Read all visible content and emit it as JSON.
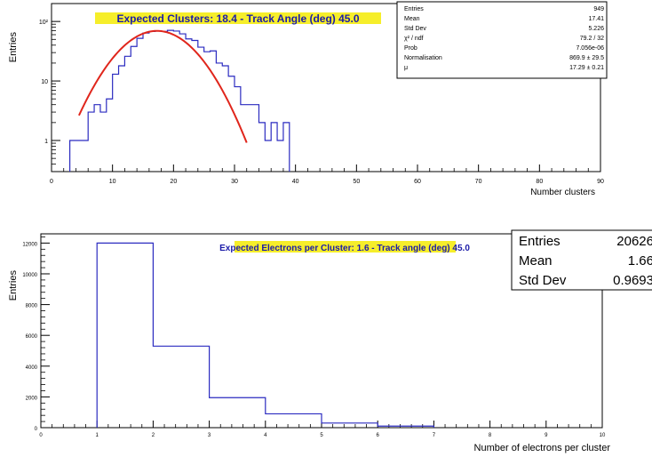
{
  "chart_data": [
    {
      "type": "bar",
      "title": "Expected Clusters: 18.4 - Track Angle (deg) 45.0",
      "xlabel": "Number clusters",
      "ylabel": "Entries",
      "xlim": [
        0,
        90
      ],
      "ylim": [
        0.3,
        200
      ],
      "log_y": true,
      "grid": false,
      "x_ticks": [
        0,
        10,
        20,
        30,
        40,
        50,
        60,
        70,
        80,
        90
      ],
      "x_tick_labels": [
        "0",
        "10",
        "20",
        "30",
        "40",
        "50",
        "60",
        "70",
        "80",
        "90"
      ],
      "y_ticks": [
        1,
        10,
        100
      ],
      "y_tick_labels": [
        "1",
        "10",
        "10²"
      ],
      "series": [
        {
          "kind": "histogram",
          "color": "#2b2bc0",
          "bin_edges": [
            3,
            4,
            5,
            6,
            7,
            8,
            9,
            10,
            11,
            12,
            13,
            14,
            15,
            16,
            17,
            18,
            19,
            20,
            21,
            22,
            23,
            24,
            25,
            26,
            27,
            28,
            29,
            30,
            31,
            32,
            33,
            34,
            35,
            36,
            37,
            38,
            39
          ],
          "values": [
            1,
            1,
            1,
            3,
            4,
            3,
            5,
            13,
            18,
            26,
            38,
            52,
            64,
            68,
            69,
            68,
            71,
            69,
            62,
            51,
            48,
            37,
            31,
            32,
            20,
            18,
            12,
            8,
            4,
            4,
            4,
            2,
            1,
            2,
            1,
            2
          ]
        },
        {
          "kind": "fit",
          "color": "#e0261c",
          "normalisation": 869.9,
          "mu": 17.29,
          "x_range": [
            4.5,
            32
          ]
        }
      ],
      "stats_box": {
        "rows": [
          {
            "label": "Entries",
            "value": "949"
          },
          {
            "label": "Mean",
            "value": "17.41"
          },
          {
            "label": "Std Dev",
            "value": "5.226"
          },
          {
            "label": "χ² / ndf",
            "value": "79.2 / 32"
          },
          {
            "label": "Prob",
            "value": "7.056e-06"
          },
          {
            "label": "Normalisation",
            "value": "869.9 ± 29.5"
          },
          {
            "label": "μ",
            "value": "17.29 ± 0.21"
          }
        ]
      }
    },
    {
      "type": "bar",
      "title": "Expected Electrons per Cluster: 1.6 - Track angle (deg) 45.0",
      "xlabel": "Number of electrons per cluster",
      "ylabel": "Entries",
      "xlim": [
        0,
        10
      ],
      "ylim": [
        0,
        12600
      ],
      "log_y": false,
      "grid": false,
      "x_ticks": [
        0,
        1,
        2,
        3,
        4,
        5,
        6,
        7,
        8,
        9,
        10
      ],
      "x_tick_labels": [
        "0",
        "1",
        "2",
        "3",
        "4",
        "5",
        "6",
        "7",
        "8",
        "9",
        "10"
      ],
      "y_ticks": [
        0,
        2000,
        4000,
        6000,
        8000,
        10000,
        12000
      ],
      "y_tick_labels": [
        "0",
        "2000",
        "4000",
        "6000",
        "8000",
        "10000",
        "12000"
      ],
      "series": [
        {
          "kind": "histogram",
          "color": "#2b2bc0",
          "bin_edges": [
            1,
            2,
            3,
            4,
            5,
            6,
            7
          ],
          "values": [
            12000,
            5300,
            1950,
            900,
            300,
            100
          ]
        }
      ],
      "stats_box": {
        "rows": [
          {
            "label": "Entries",
            "value": "20626"
          },
          {
            "label": "Mean",
            "value": "1.66"
          },
          {
            "label": "Std Dev",
            "value": "0.9693"
          }
        ]
      }
    }
  ]
}
